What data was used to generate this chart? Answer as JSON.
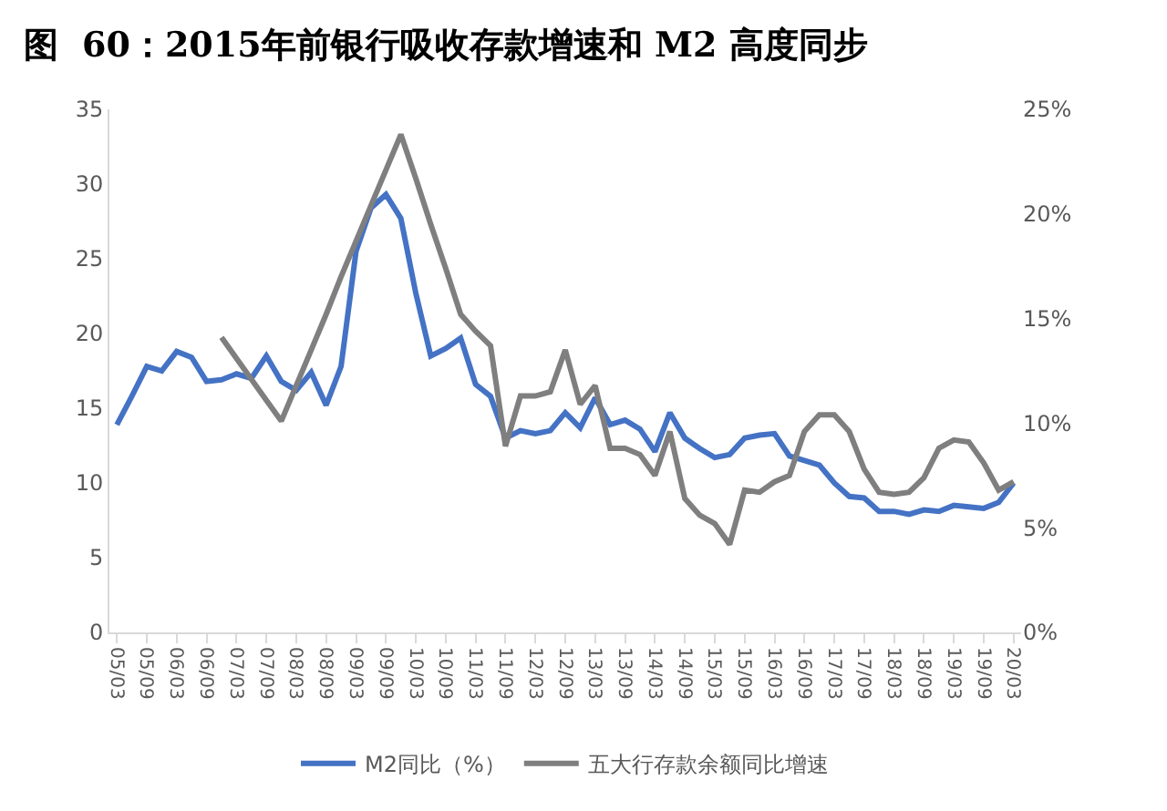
{
  "chart_data": {
    "type": "line",
    "title": "图  60：2015年前银行吸收存款增速和 M2 高度同步",
    "categories": [
      "05/03",
      null,
      "05/09",
      null,
      "06/03",
      null,
      "06/09",
      null,
      "07/03",
      null,
      "07/09",
      null,
      "08/03",
      null,
      "08/09",
      null,
      "09/03",
      null,
      "09/09",
      null,
      "10/03",
      null,
      "10/09",
      null,
      "11/03",
      null,
      "11/09",
      null,
      "12/03",
      null,
      "12/09",
      null,
      "13/03",
      null,
      "13/09",
      null,
      "14/03",
      null,
      "14/09",
      null,
      "15/03",
      null,
      "15/09",
      null,
      "16/03",
      null,
      "16/09",
      null,
      "17/03",
      null,
      "17/09",
      null,
      "18/03",
      null,
      "18/09",
      null,
      "19/03",
      null,
      "19/09",
      null,
      "20/03"
    ],
    "series": [
      {
        "name": "M2同比（%）",
        "color": "#4472c4",
        "values": [
          13.9,
          15.8,
          17.8,
          17.5,
          18.8,
          18.4,
          16.8,
          16.9,
          17.3,
          17.0,
          18.5,
          16.8,
          16.2,
          17.4,
          15.2,
          17.8,
          25.5,
          28.4,
          29.3,
          27.7,
          22.7,
          18.5,
          19.0,
          19.7,
          16.6,
          15.8,
          13.0,
          13.5,
          13.3,
          13.5,
          14.7,
          13.7,
          15.7,
          13.9,
          14.2,
          13.6,
          12.1,
          14.7,
          13.0,
          12.3,
          11.7,
          11.9,
          13.0,
          13.2,
          13.3,
          11.8,
          11.5,
          11.2,
          10.0,
          9.1,
          9.0,
          8.1,
          8.1,
          7.9,
          8.2,
          8.1,
          8.5,
          8.4,
          8.3,
          8.7,
          10.0
        ]
      },
      {
        "name": "五大行存款余额同比增速",
        "color": "#7f7f7f",
        "axis": "y2",
        "values": [
          null,
          null,
          null,
          null,
          null,
          null,
          null,
          14.1,
          13.1,
          12.1,
          11.1,
          10.1,
          11.8,
          13.5,
          15.2,
          17.0,
          18.7,
          20.4,
          22.1,
          23.8,
          21.7,
          19.5,
          17.4,
          15.2,
          14.4,
          13.7,
          8.9,
          11.3,
          11.3,
          11.5,
          13.5,
          10.9,
          11.8,
          8.8,
          8.8,
          8.5,
          7.5,
          9.6,
          6.4,
          5.6,
          5.2,
          4.2,
          6.8,
          6.7,
          7.2,
          7.5,
          9.6,
          10.4,
          10.4,
          9.6,
          7.8,
          6.7,
          6.6,
          6.7,
          7.4,
          8.8,
          9.2,
          9.1,
          8.1,
          6.8,
          7.2
        ]
      }
    ],
    "ylim": [
      0,
      35
    ],
    "yticks": [
      0,
      5,
      10,
      15,
      20,
      25,
      30,
      35
    ],
    "y2lim": [
      0,
      25
    ],
    "y2ticks": [
      {
        "value": 0,
        "label": "0%"
      },
      {
        "value": 5,
        "label": "5%"
      },
      {
        "value": 10,
        "label": "10%"
      },
      {
        "value": 15,
        "label": "15%"
      },
      {
        "value": 20,
        "label": "20%"
      },
      {
        "value": 25,
        "label": "25%"
      }
    ],
    "legend": "bottom",
    "marker": "none",
    "line_style": "solid"
  }
}
